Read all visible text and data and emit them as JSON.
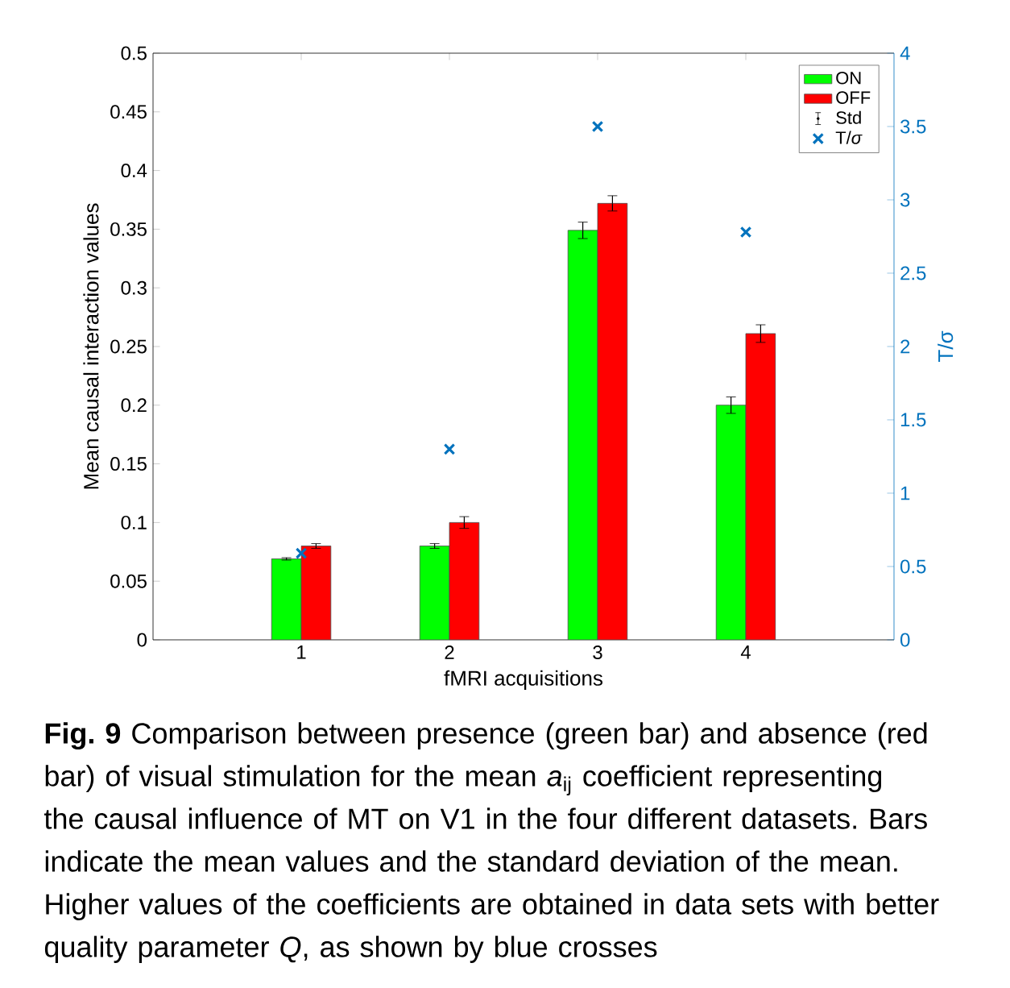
{
  "chart_data": {
    "type": "bar",
    "xlabel": "fMRI acquisitions",
    "ylabel": "Mean causal interaction values",
    "y2label": "T/σ",
    "x": [
      1,
      2,
      3,
      4
    ],
    "xlim": [
      0,
      5
    ],
    "xticks": [
      1,
      2,
      3,
      4
    ],
    "ylim": [
      0,
      0.5
    ],
    "yticks": [
      0,
      0.05,
      0.1,
      0.15,
      0.2,
      0.25,
      0.3,
      0.35,
      0.4,
      0.45,
      0.5
    ],
    "y2lim": [
      0,
      4
    ],
    "y2ticks": [
      0,
      0.5,
      1,
      1.5,
      2,
      2.5,
      3,
      3.5,
      4
    ],
    "legend": "top right",
    "grid": false,
    "annotations": [
      "Std",
      "**Fig. 9** Comparison between presence (green bar) and absence (red bar) of visual stimulation for the mean *a*$_{ij}$ coefficient representing the causal influence of MT on V1 in the four different datasets. Bars indicate the mean values and the standard deviation of the mean. Higher values of the coefficients are obtained in data sets with better quality parameter *Q*, as shown by blue crosses"
    ],
    "series": [
      {
        "name": "ON",
        "color": "#00ff00",
        "values": [
          0.069,
          0.08,
          0.349,
          0.2
        ],
        "errors": [
          0.001,
          0.002,
          0.007,
          0.007
        ]
      },
      {
        "name": "OFF",
        "color": "#ff0000",
        "values": [
          0.08,
          0.1,
          0.372,
          0.261
        ],
        "errors": [
          0.002,
          0.005,
          0.0065,
          0.0075
        ]
      },
      {
        "name": "T/*σ*",
        "type": "scatter",
        "axis": "y2",
        "marker": "cross",
        "color": "#0072bd",
        "values": [
          0.59,
          1.3,
          3.5,
          2.78
        ]
      }
    ]
  }
}
